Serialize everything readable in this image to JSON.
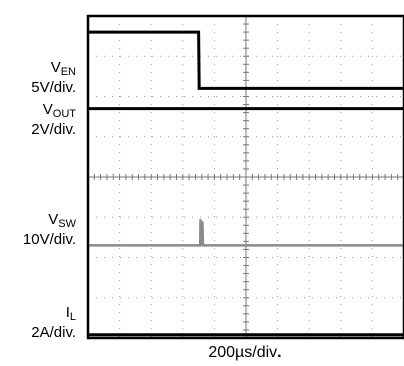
{
  "chart_data": {
    "type": "line",
    "xlabel": "200µs/div",
    "xlabel_suffix": ".",
    "divisions": {
      "x": 10,
      "y": 8
    },
    "x_unit": "div",
    "xlim": [
      0,
      10
    ],
    "colors": {
      "frame": "#000000",
      "grid_dots": "#9a9a9a",
      "VEN": "#000000",
      "VOUT": "#000000",
      "VSW": "#8a8a8a",
      "IL": "#000000"
    },
    "channels": [
      {
        "id": "VEN",
        "name": "V",
        "sub": "EN",
        "scale": "5V/div.",
        "zero_div": 4.3,
        "points": [
          [
            0,
            7.6
          ],
          [
            3.5,
            7.6
          ],
          [
            3.52,
            6.2
          ],
          [
            10,
            6.2
          ]
        ]
      },
      {
        "id": "VOUT",
        "name": "V",
        "sub": "OUT",
        "scale": "2V/div.",
        "zero_div": 5.7,
        "points": [
          [
            0,
            5.7
          ],
          [
            10,
            5.7
          ]
        ]
      },
      {
        "id": "VSW",
        "name": "V",
        "sub": "SW",
        "scale": "10V/div.",
        "zero_div": 2.3,
        "points": [
          [
            0,
            2.3
          ],
          [
            3.55,
            2.3
          ],
          [
            3.56,
            2.95
          ],
          [
            3.58,
            2.3
          ],
          [
            3.62,
            2.9
          ],
          [
            3.64,
            2.3
          ],
          [
            10,
            2.3
          ]
        ]
      },
      {
        "id": "IL",
        "name": "I",
        "sub": "L",
        "scale": "2A/div.",
        "zero_div": 0.08,
        "points": [
          [
            0,
            0.08
          ],
          [
            10,
            0.08
          ]
        ]
      }
    ]
  }
}
